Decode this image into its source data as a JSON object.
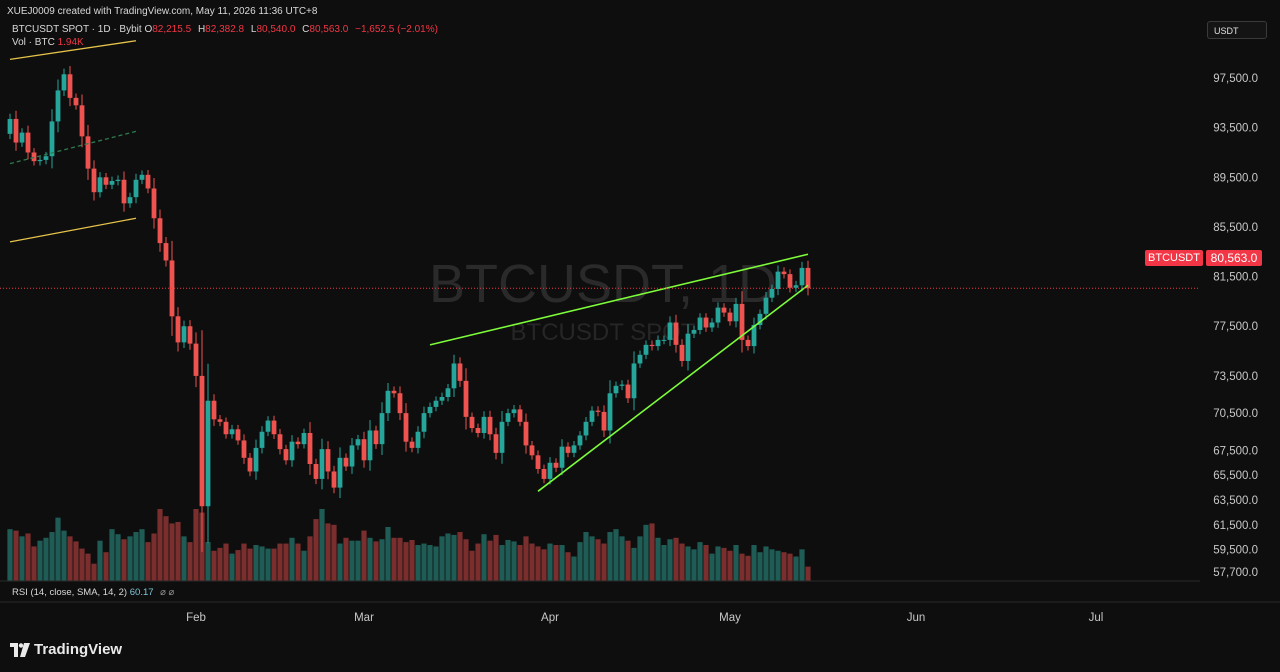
{
  "header": {
    "credit": "XUEJ0009 created with TradingView.com, May 11, 2026 11:36 UTC+8",
    "symbol_line": "BTCUSDT SPOT · 1D · Bybit",
    "open_label": "O",
    "open": "82,215.5",
    "high_label": "H",
    "high": "82,382.8",
    "low_label": "L",
    "low": "80,540.0",
    "close_label": "C",
    "close": "80,563.0",
    "change": "−1,652.5 (−2.01%)",
    "vol_label": "Vol · BTC",
    "vol_value": "1.94K"
  },
  "currency": "USDT",
  "price_tag": {
    "symbol": "BTCUSDT",
    "price": "80,563.0"
  },
  "indicator": {
    "label": "RSI (14, close, SMA, 14, 2)",
    "value": "60.17",
    "icons": "⌀  ⌀"
  },
  "logo": {
    "text": "TradingView"
  },
  "colors": {
    "up": "#26a69a",
    "down": "#ef5350",
    "wedge": "#7cfc3a",
    "channel": "#e6c34a",
    "price_line": "#f23645"
  },
  "chart_data": {
    "type": "candlestick",
    "watermark": "BTCUSDT, 1D",
    "watermark_sub": "BTCUSDT SPOT",
    "y_ticks": [
      97500,
      93500,
      89500,
      85500,
      81500,
      77500,
      73500,
      70500,
      67500,
      65500,
      63500,
      61500,
      59500,
      57700
    ],
    "y_tick_labels": [
      "97,500.0",
      "93,500.0",
      "89,500.0",
      "85,500.0",
      "81,500.0",
      "77,500.0",
      "73,500.0",
      "70,500.0",
      "67,500.0",
      "65,500.0",
      "63,500.0",
      "61,500.0",
      "59,500.0",
      "57,700.0"
    ],
    "x_labels": [
      {
        "label": "Feb",
        "date": "2026-02-01"
      },
      {
        "label": "Mar",
        "date": "2026-03-01"
      },
      {
        "label": "Apr",
        "date": "2026-04-01"
      },
      {
        "label": "May",
        "date": "2026-05-01"
      },
      {
        "label": "Jun",
        "date": "2026-06-01"
      },
      {
        "label": "Jul",
        "date": "2026-07-01"
      }
    ],
    "last_price": 80563.0,
    "closes": [
      94200,
      92300,
      93100,
      91500,
      90800,
      90900,
      91200,
      94000,
      96500,
      97800,
      95900,
      95300,
      92800,
      90200,
      88300,
      89500,
      88900,
      89200,
      89300,
      87400,
      87900,
      89300,
      89700,
      88600,
      86200,
      84200,
      82800,
      78300,
      76200,
      77500,
      76100,
      73500,
      63000,
      71500,
      70000,
      69800,
      68800,
      69200,
      68300,
      66900,
      65800,
      67700,
      69000,
      69900,
      68800,
      67600,
      66700,
      68200,
      68000,
      68900,
      66400,
      65200,
      67600,
      65800,
      64500,
      66900,
      66200,
      67900,
      68400,
      66700,
      69100,
      68000,
      70500,
      72300,
      72100,
      70500,
      68200,
      67700,
      69000,
      70500,
      71000,
      71500,
      71800,
      72500,
      74500,
      73100,
      70200,
      69300,
      68900,
      70200,
      68800,
      67300,
      69800,
      70500,
      70800,
      69800,
      67900,
      67100,
      66000,
      65200,
      66500,
      66100,
      67800,
      67300,
      67900,
      68700,
      69800,
      70700,
      70600,
      69100,
      72100,
      72700,
      72800,
      71700,
      74500,
      75200,
      76000,
      75900,
      76400,
      76400,
      77800,
      76000,
      74700,
      76900,
      77200,
      78200,
      77400,
      77800,
      79000,
      78600,
      77900,
      79300,
      76400,
      75900,
      77600,
      78500,
      79800,
      80500,
      81900,
      81700,
      80600,
      80800,
      82200,
      80560
    ],
    "open_first": 93000,
    "volume_rel": [
      0.72,
      0.7,
      0.62,
      0.66,
      0.48,
      0.56,
      0.6,
      0.68,
      0.88,
      0.7,
      0.62,
      0.55,
      0.45,
      0.38,
      0.24,
      0.56,
      0.4,
      0.72,
      0.65,
      0.58,
      0.62,
      0.68,
      0.72,
      0.54,
      0.66,
      1,
      0.9,
      0.8,
      0.82,
      0.62,
      0.54,
      1,
      0.95,
      0.54,
      0.42,
      0.46,
      0.52,
      0.38,
      0.43,
      0.52,
      0.45,
      0.5,
      0.48,
      0.45,
      0.45,
      0.52,
      0.52,
      0.6,
      0.52,
      0.42,
      0.62,
      0.86,
      1,
      0.8,
      0.78,
      0.52,
      0.6,
      0.56,
      0.56,
      0.7,
      0.6,
      0.55,
      0.58,
      0.75,
      0.6,
      0.6,
      0.54,
      0.57,
      0.5,
      0.52,
      0.5,
      0.48,
      0.62,
      0.66,
      0.64,
      0.68,
      0.58,
      0.42,
      0.52,
      0.65,
      0.56,
      0.64,
      0.5,
      0.57,
      0.55,
      0.5,
      0.62,
      0.52,
      0.48,
      0.44,
      0.52,
      0.5,
      0.5,
      0.4,
      0.34,
      0.54,
      0.68,
      0.62,
      0.58,
      0.52,
      0.68,
      0.72,
      0.62,
      0.56,
      0.46,
      0.62,
      0.78,
      0.8,
      0.6,
      0.5,
      0.58,
      0.6,
      0.52,
      0.48,
      0.44,
      0.54,
      0.5,
      0.38,
      0.48,
      0.46,
      0.42,
      0.5,
      0.38,
      0.35,
      0.5,
      0.4,
      0.48,
      0.44,
      0.42,
      0.4,
      0.38,
      0.34,
      0.44,
      0.2
    ],
    "trendlines": [
      {
        "name": "channel-upper",
        "from": {
          "date": "2026-01-01",
          "price": 99000
        },
        "to": {
          "date": "2026-01-22",
          "price": 100500
        }
      },
      {
        "name": "channel-mid",
        "from": {
          "date": "2026-01-01",
          "price": 90600
        },
        "to": {
          "date": "2026-01-22",
          "price": 93200
        }
      },
      {
        "name": "channel-lower",
        "from": {
          "date": "2026-01-01",
          "price": 84300
        },
        "to": {
          "date": "2026-01-22",
          "price": 86200
        }
      },
      {
        "name": "wedge-upper",
        "from": {
          "date": "2026-03-12",
          "price": 76000
        },
        "to": {
          "date": "2026-05-14",
          "price": 83300
        }
      },
      {
        "name": "wedge-lower",
        "from": {
          "date": "2026-03-30",
          "price": 64200
        },
        "to": {
          "date": "2026-05-14",
          "price": 80800
        }
      }
    ]
  }
}
